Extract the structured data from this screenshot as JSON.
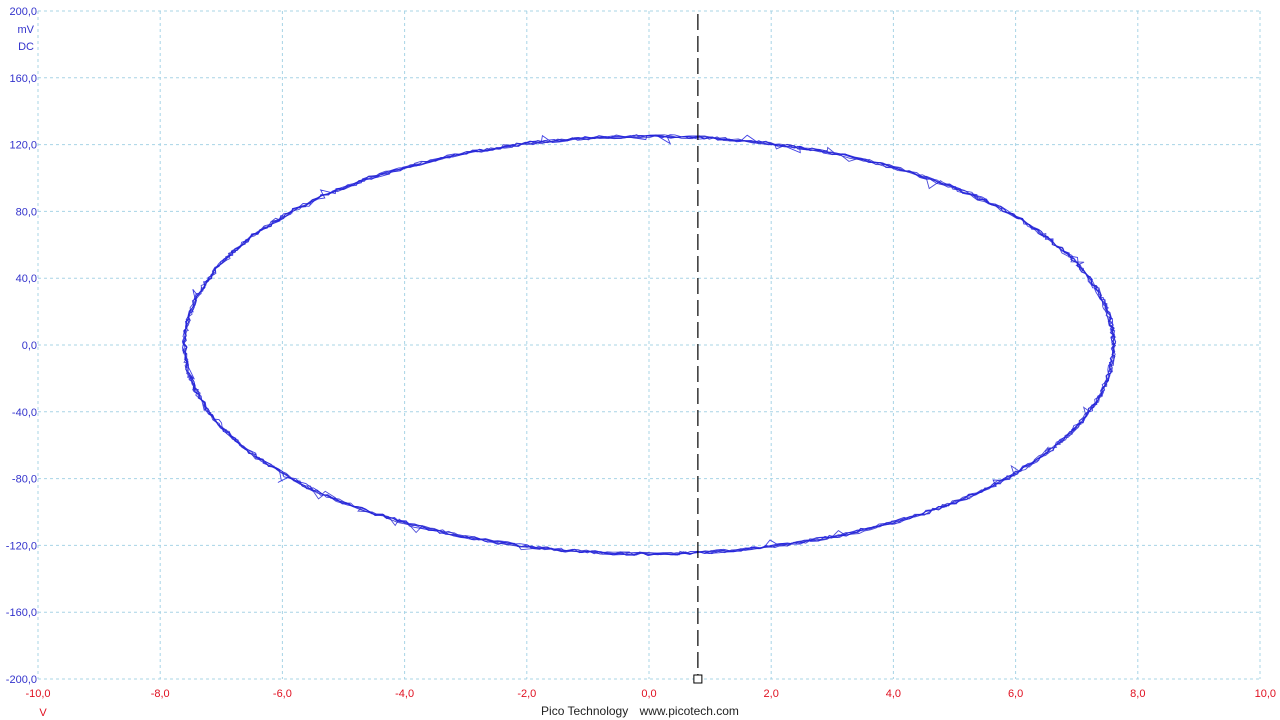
{
  "footer": {
    "company": "Pico Technology",
    "website": "www.picotech.com"
  },
  "colors": {
    "trace": "#1f1fe0",
    "grid": "#a8d4e6",
    "cursor": "#000000",
    "y_axis_text": "#3333cc",
    "x_axis_text": "#e01020"
  },
  "chart_data": {
    "type": "line",
    "title": "",
    "mode": "XY",
    "xlim": [
      -10.0,
      10.0
    ],
    "ylim": [
      -200.0,
      200.0
    ],
    "x_unit": "V",
    "y_unit": "mV",
    "y_coupling": "DC",
    "x_ticks": [
      "-10,0",
      "-8,0",
      "-6,0",
      "-4,0",
      "-2,0",
      "0,0",
      "2,0",
      "4,0",
      "6,0",
      "8,0",
      "10,0"
    ],
    "x_tick_values": [
      -10,
      -8,
      -6,
      -4,
      -2,
      0,
      2,
      4,
      6,
      8,
      10
    ],
    "y_ticks": [
      "200,0",
      "160,0",
      "120,0",
      "80,0",
      "40,0",
      "0,0",
      "-40,0",
      "-80,0",
      "-120,0",
      "-160,0",
      "-200,0"
    ],
    "y_tick_values": [
      200,
      160,
      120,
      80,
      40,
      0,
      -40,
      -80,
      -120,
      -160,
      -200
    ],
    "grid": true,
    "cursor_x": 0.8,
    "series": [
      {
        "shape": "ellipse",
        "center": [
          0.0,
          0.0
        ],
        "x_amplitude": 7.6,
        "y_amplitude": 125.0
      }
    ]
  }
}
